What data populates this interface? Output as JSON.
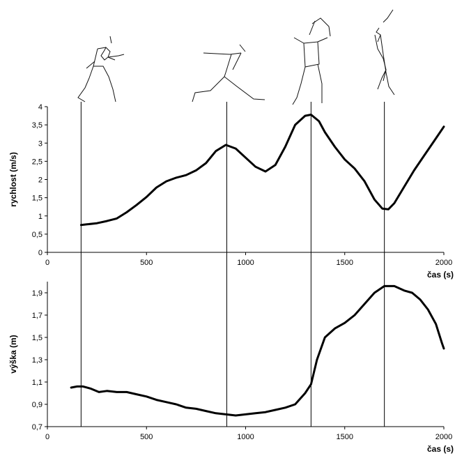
{
  "chart_data": [
    {
      "type": "line",
      "ylabel": "rychlost (m/s)",
      "xlabel": "čas (s)",
      "xlim": [
        0,
        2000
      ],
      "ylim": [
        0,
        4
      ],
      "x_ticks": [
        "0",
        "500",
        "1000",
        "1500",
        "2000"
      ],
      "y_ticks": [
        "0",
        "0,5",
        "1",
        "1,5",
        "2",
        "2,5",
        "3",
        "3,5",
        "4"
      ],
      "series": [
        {
          "x": [
            170,
            200,
            250,
            300,
            350,
            400,
            450,
            500,
            550,
            600,
            650,
            700,
            750,
            800,
            850,
            900,
            950,
            1000,
            1050,
            1100,
            1150,
            1200,
            1250,
            1300,
            1330,
            1370,
            1400,
            1450,
            1500,
            1550,
            1600,
            1650,
            1690,
            1720,
            1750,
            1800,
            1850,
            1900,
            1950,
            2000
          ],
          "y": [
            0.75,
            0.77,
            0.8,
            0.86,
            0.93,
            1.1,
            1.3,
            1.52,
            1.78,
            1.95,
            2.05,
            2.12,
            2.25,
            2.45,
            2.78,
            2.95,
            2.85,
            2.6,
            2.35,
            2.22,
            2.4,
            2.9,
            3.5,
            3.75,
            3.78,
            3.6,
            3.3,
            2.9,
            2.55,
            2.3,
            1.95,
            1.45,
            1.2,
            1.18,
            1.35,
            1.8,
            2.25,
            2.65,
            3.05,
            3.45
          ]
        }
      ]
    },
    {
      "type": "line",
      "ylabel": "výška (m)",
      "xlabel": "čas (s)",
      "xlim": [
        0,
        2000
      ],
      "ylim": [
        0.7,
        2.0
      ],
      "x_ticks": [
        "0",
        "500",
        "1000",
        "1500",
        "2000"
      ],
      "y_ticks": [
        "0,7",
        "0,9",
        "1,1",
        "1,3",
        "1,5",
        "1,7",
        "1,9"
      ],
      "series": [
        {
          "x": [
            120,
            150,
            180,
            220,
            260,
            300,
            350,
            400,
            450,
            500,
            550,
            600,
            650,
            700,
            750,
            800,
            850,
            900,
            950,
            1000,
            1050,
            1100,
            1150,
            1200,
            1250,
            1300,
            1330,
            1360,
            1400,
            1450,
            1500,
            1550,
            1600,
            1650,
            1700,
            1750,
            1800,
            1840,
            1880,
            1920,
            1960,
            1990,
            2000
          ],
          "y": [
            1.05,
            1.06,
            1.06,
            1.04,
            1.01,
            1.02,
            1.01,
            1.01,
            0.99,
            0.97,
            0.94,
            0.92,
            0.9,
            0.87,
            0.86,
            0.84,
            0.82,
            0.81,
            0.8,
            0.81,
            0.82,
            0.83,
            0.85,
            0.87,
            0.9,
            1.0,
            1.08,
            1.3,
            1.5,
            1.58,
            1.63,
            1.7,
            1.8,
            1.9,
            1.96,
            1.96,
            1.92,
            1.9,
            1.84,
            1.75,
            1.62,
            1.45,
            1.4
          ]
        }
      ]
    }
  ],
  "phase_markers_x": [
    170,
    905,
    1330,
    1700
  ]
}
